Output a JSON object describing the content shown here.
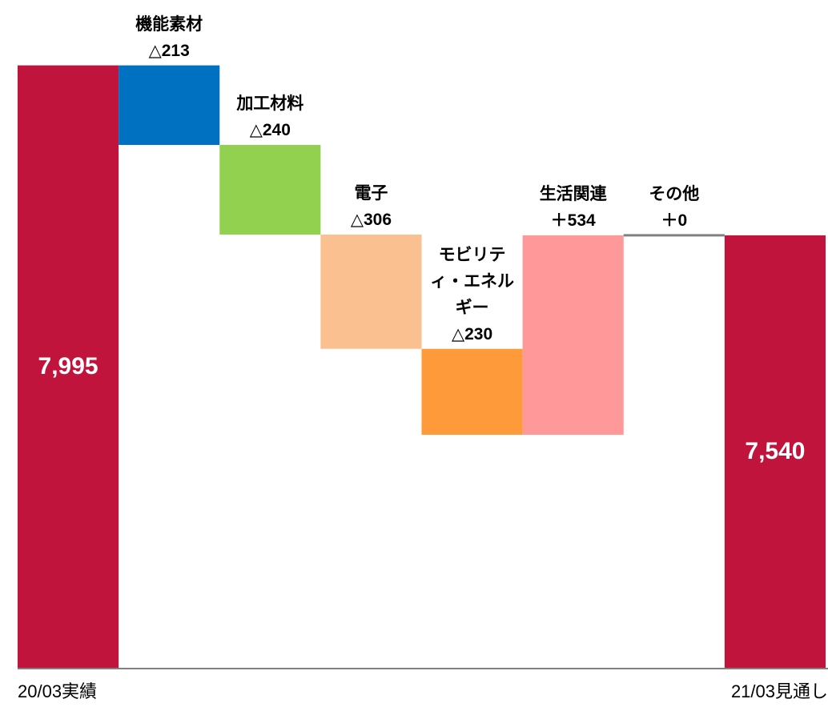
{
  "chart_data": {
    "type": "waterfall",
    "categories": [
      "20/03実績",
      "機能素材",
      "加工材料",
      "電子",
      "モビリティ・エネルギー",
      "生活関連",
      "その他",
      "21/03見通し"
    ],
    "measure": [
      "absolute",
      "relative",
      "relative",
      "relative",
      "relative",
      "relative",
      "relative",
      "absolute"
    ],
    "values": [
      7995,
      -213,
      -240,
      -306,
      -230,
      534,
      0,
      7540
    ],
    "value_labels": [
      "7,995",
      "△213",
      "△240",
      "△306",
      "△230",
      "＋534",
      "＋0",
      "7,540"
    ],
    "colors": [
      "#c0143c",
      "#0070c0",
      "#92d050",
      "#fac090",
      "#ff9a3a",
      "#ff9999",
      "#808080",
      "#c0143c"
    ],
    "ylim": [
      6380,
      8170
    ]
  }
}
